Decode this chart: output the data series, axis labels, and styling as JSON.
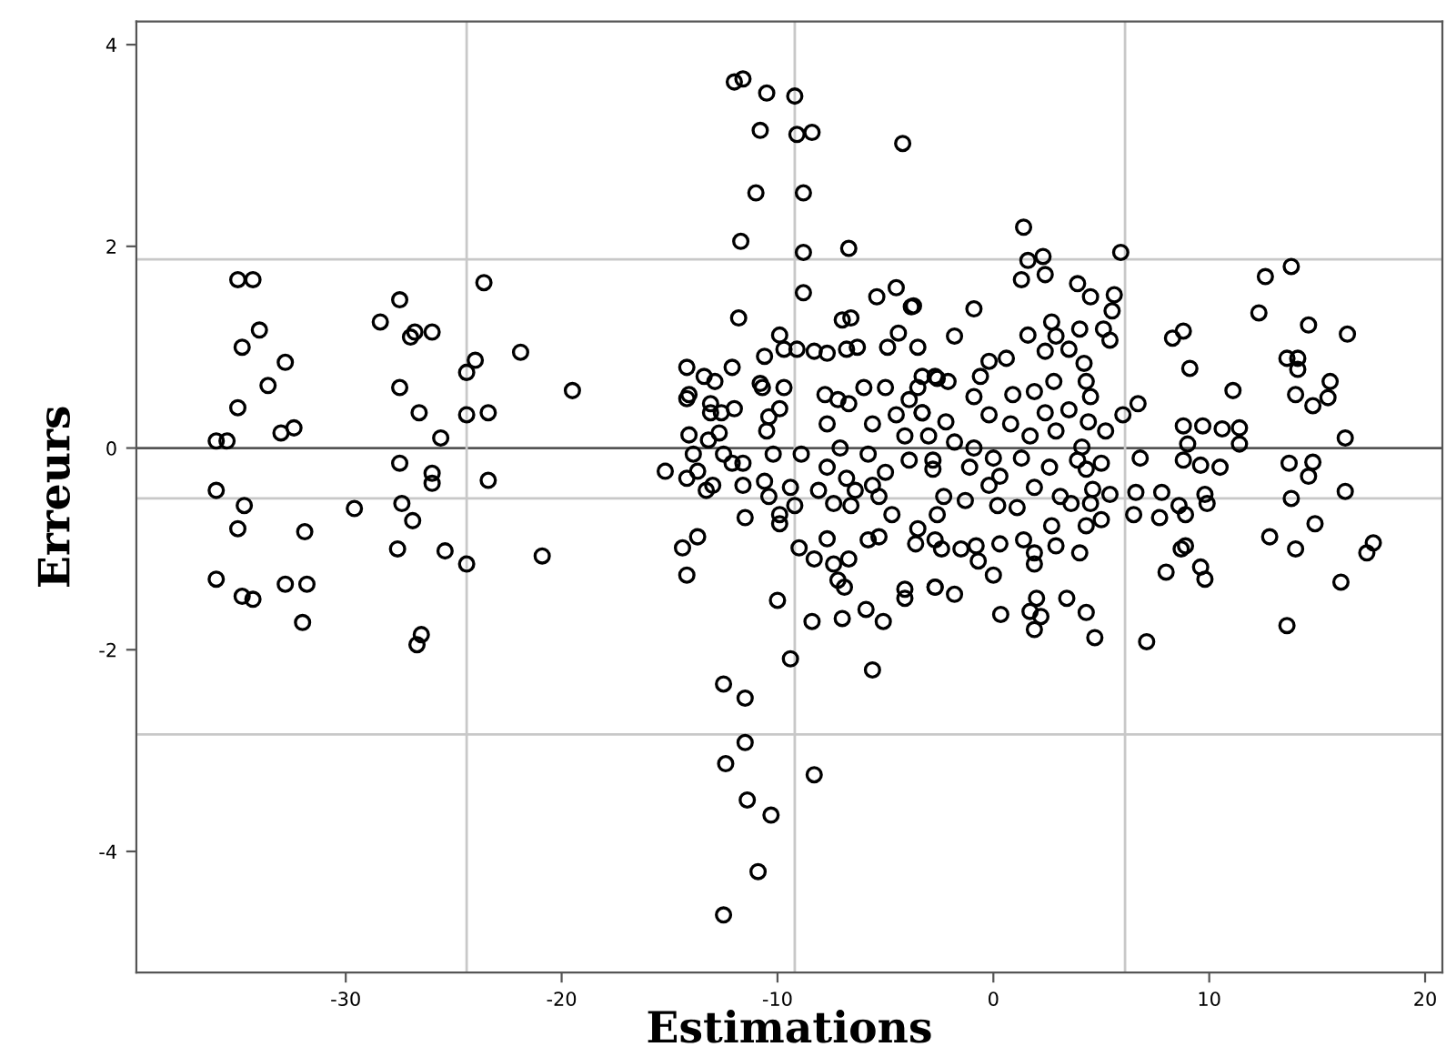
{
  "chart_data": {
    "type": "scatter",
    "xlabel": "Estimations",
    "ylabel": "Erreurs",
    "xlim": [
      -39.7,
      20.8
    ],
    "ylim": [
      -5.2,
      4.23
    ],
    "xticks": [
      -30,
      -20,
      -10,
      0,
      10,
      20
    ],
    "yticks": [
      -4,
      -2,
      0,
      2,
      4
    ],
    "grid": false,
    "marker": "circle",
    "color": "#000000",
    "ref_lines": [
      {
        "axis": "y",
        "value": 0,
        "color": "#555555"
      },
      {
        "axis": "y",
        "value": 1.87,
        "color": "#c8c8c8"
      },
      {
        "axis": "y",
        "value": -0.5,
        "color": "#c8c8c8"
      },
      {
        "axis": "y",
        "value": -2.84,
        "color": "#c8c8c8"
      },
      {
        "axis": "x",
        "value": -24.4,
        "color": "#c8c8c8"
      },
      {
        "axis": "x",
        "value": -9.2,
        "color": "#c8c8c8"
      },
      {
        "axis": "x",
        "value": 6.1,
        "color": "#c8c8c8"
      }
    ],
    "x": [
      -36,
      -35.5,
      -36,
      -35,
      -35,
      -34.3,
      -34.8,
      -34,
      -33.6,
      -32.8,
      -33,
      -32.4,
      -34.7,
      -35,
      -36,
      -34.8,
      -34.3,
      -32.8,
      -31.8,
      -31.9,
      -32,
      -29.6,
      -28.4,
      -27.5,
      -27,
      -26.8,
      -26,
      -27.5,
      -26.6,
      -25.6,
      -26,
      -26,
      -27.5,
      -27.4,
      -26.9,
      -27.6,
      -25.4,
      -24.4,
      -26.5,
      -26.7,
      -24.4,
      -24.4,
      -24.0,
      -23.6,
      -23.4,
      -23.4,
      -21.9,
      -19.5,
      -20.9,
      -12.0,
      -11.6,
      -10.5,
      -9.2,
      -10.8,
      -9.1,
      -8.4,
      -4.2,
      -11.0,
      -8.8,
      -11.7,
      -8.8,
      -6.7,
      -8.8,
      -5.4,
      -4.5,
      -3.7,
      -11.8,
      -7,
      -6.6,
      -9.9,
      -9.7,
      -9.1,
      -8.3,
      -7.7,
      -6.8,
      -6.3,
      -4.9,
      -4.4,
      -10.6,
      -14.2,
      -13.4,
      -12.9,
      -12.1,
      -14.2,
      -14.1,
      -13.1,
      -13.1,
      -12.6,
      -12,
      -10.8,
      -10.7,
      -9.7,
      -10.4,
      -9.9,
      -10.5,
      -14.1,
      -13.2,
      -12.7,
      -13.9,
      -15.2,
      -14.2,
      -13.7,
      -13.3,
      -13.0,
      -12.5,
      -12.1,
      -11.6,
      -11.6,
      -10.6,
      -10.2,
      -9.4,
      -8.9,
      -10.4,
      -11.5,
      -9.9,
      -9.9,
      -9.2,
      -14.4,
      -13.7,
      -14.2,
      -9.0,
      -8.3,
      -7.7,
      -7.4,
      -7.2,
      -6.9,
      -6.7,
      -5.8,
      -5.3,
      -4.1,
      -4.1,
      -2.7,
      -10.0,
      -8.4,
      -7.0,
      -5.9,
      -5.1,
      -9.4,
      -5.6,
      -12.5,
      -11.5,
      -11.5,
      -12.4,
      -8.3,
      -11.4,
      -10.3,
      -10.9,
      -12.5,
      -7.8,
      -7.2,
      -6.7,
      -7.7,
      -7.1,
      -7.7,
      -6.8,
      -8.1,
      -6,
      -5.0,
      -5.6,
      -5.8,
      -5.0,
      -5.3,
      -4.7,
      -4.5,
      -4.1,
      -3.9,
      -3.3,
      -3.0,
      -2.8,
      -3.3,
      -2.6,
      -3.9,
      -6.4,
      -7.4,
      -6.6,
      -5.6,
      1.4,
      1.6,
      2.3,
      1.3,
      2.4,
      3.9,
      4.5,
      5.6,
      5.5,
      -0.9,
      -3.8,
      -1.8,
      -3.5,
      2.7,
      4,
      5.1,
      5.4,
      1.6,
      2.9,
      3.5,
      2.4,
      0.6,
      -0.2,
      4.2,
      -2.7,
      -0.6,
      2.8,
      4.3,
      -3.5,
      -2.1,
      -0.9,
      0.9,
      1.9,
      4.5,
      3.5,
      2.4,
      -0.2,
      -2.2,
      -3.3,
      0.8,
      2.9,
      4.4,
      5.2,
      1.7,
      4.1,
      -1.8,
      -0.9,
      0,
      1.3,
      3.9,
      5,
      -2.8,
      -1.1,
      0.3,
      2.6,
      4.3,
      -0.2,
      1.9,
      4.6,
      5.4,
      -2.3,
      -1.3,
      0.2,
      1.1,
      3.1,
      3.6,
      4.5,
      5,
      -2.6,
      -3.5,
      2.7,
      4.3,
      -2.7,
      -0.8,
      0.3,
      1.4,
      2.9,
      4,
      -3.6,
      -2.4,
      -1.5,
      1.9,
      -0.7,
      1.9,
      0,
      -2.7,
      -1.8,
      2,
      3.4,
      1.7,
      2.2,
      0.34,
      1.9,
      4.7,
      7.1,
      4.3,
      13.6,
      16.1,
      17.6,
      17.3,
      14.9,
      14,
      12.8,
      9.8,
      9.6,
      8,
      8.7,
      8.9,
      7.8,
      6.6,
      6.5,
      7.7,
      8.6,
      8.9,
      9.8,
      9.9,
      6.8,
      8.8,
      9.6,
      10.5,
      9,
      8.8,
      9.7,
      10.6,
      11.4,
      11.4,
      11.1,
      9.1,
      8.3,
      8.8,
      6.7,
      6,
      5.9,
      12.3,
      12.6,
      13.8,
      14.6,
      16.4,
      13.6,
      14.1,
      14.1,
      14,
      14.8,
      15.5,
      15.6,
      16.3,
      13.7,
      14.8,
      14.6,
      13.8,
      16.3
    ],
    "values": [
      0.07,
      0.07,
      -0.42,
      0.4,
      1.67,
      1.67,
      1.0,
      1.17,
      0.62,
      0.85,
      0.15,
      0.2,
      -0.57,
      -0.8,
      -1.3,
      -1.47,
      -1.5,
      -1.35,
      -1.35,
      -0.83,
      -1.73,
      -0.6,
      1.25,
      1.47,
      1.1,
      1.15,
      1.15,
      0.6,
      0.35,
      0.1,
      -0.25,
      -0.35,
      -0.15,
      -0.55,
      -0.72,
      -1.0,
      -1.02,
      -1.15,
      -1.85,
      -1.95,
      0.33,
      0.75,
      0.87,
      1.64,
      0.35,
      -0.32,
      0.95,
      0.57,
      -1.07,
      3.63,
      3.66,
      3.52,
      3.49,
      3.15,
      3.11,
      3.13,
      3.02,
      2.53,
      2.53,
      2.05,
      1.94,
      1.98,
      1.54,
      1.5,
      1.59,
      1.41,
      1.29,
      1.27,
      1.29,
      1.12,
      0.98,
      0.98,
      0.96,
      0.94,
      0.98,
      1.0,
      1.0,
      1.14,
      0.91,
      0.8,
      0.71,
      0.66,
      0.8,
      0.49,
      0.53,
      0.44,
      0.35,
      0.35,
      0.39,
      0.64,
      0.6,
      0.6,
      0.31,
      0.39,
      0.17,
      0.13,
      0.08,
      0.15,
      -0.06,
      -0.23,
      -0.3,
      -0.23,
      -0.42,
      -0.37,
      -0.06,
      -0.15,
      -0.15,
      -0.37,
      -0.33,
      -0.06,
      -0.39,
      -0.06,
      -0.48,
      -0.69,
      -0.66,
      -0.75,
      -0.57,
      -0.99,
      -0.88,
      -1.26,
      -0.99,
      -1.1,
      -0.9,
      -1.15,
      -1.31,
      -1.38,
      -1.1,
      -0.91,
      -0.88,
      -1.4,
      -1.49,
      -1.38,
      -1.51,
      -1.72,
      -1.69,
      -1.6,
      -1.72,
      -2.09,
      -2.2,
      -2.34,
      -2.48,
      -2.92,
      -3.13,
      -3.24,
      -3.49,
      -3.64,
      -4.2,
      -4.63,
      0.53,
      0.48,
      0.44,
      0.24,
      0,
      -0.19,
      -0.3,
      -0.42,
      0.6,
      0.6,
      0.24,
      -0.06,
      -0.24,
      -0.48,
      -0.66,
      0.33,
      0.12,
      -0.12,
      0.35,
      0.12,
      -0.12,
      0.71,
      0.69,
      0.48,
      -0.42,
      -0.55,
      -0.57,
      -0.37,
      2.19,
      1.86,
      1.9,
      1.67,
      1.72,
      1.63,
      1.5,
      1.52,
      1.36,
      1.38,
      1.4,
      1.11,
      1.0,
      1.25,
      1.18,
      1.18,
      1.07,
      1.12,
      1.11,
      0.98,
      0.96,
      0.89,
      0.86,
      0.84,
      0.71,
      0.71,
      0.66,
      0.66,
      0.6,
      0.66,
      0.51,
      0.53,
      0.56,
      0.51,
      0.38,
      0.35,
      0.33,
      0.26,
      0.35,
      0.24,
      0.17,
      0.26,
      0.17,
      0.12,
      0.01,
      0.06,
      0,
      -0.1,
      -0.1,
      -0.12,
      -0.15,
      -0.21,
      -0.19,
      -0.28,
      -0.19,
      -0.21,
      -0.37,
      -0.39,
      -0.41,
      -0.46,
      -0.48,
      -0.52,
      -0.57,
      -0.59,
      -0.48,
      -0.55,
      -0.55,
      -0.71,
      -0.66,
      -0.8,
      -0.77,
      -0.77,
      -0.91,
      -0.97,
      -0.95,
      -0.91,
      -0.97,
      -1.04,
      -0.95,
      -1.0,
      -1.0,
      -1.04,
      -1.12,
      -1.15,
      -1.26,
      -1.38,
      -1.45,
      -1.49,
      -1.49,
      -1.62,
      -1.67,
      -1.65,
      -1.8,
      -1.88,
      -1.92,
      -1.63,
      -1.76,
      -1.33,
      -0.94,
      -1.04,
      -0.75,
      -1.0,
      -0.88,
      -1.3,
      -1.18,
      -1.23,
      -1.0,
      -0.97,
      -0.44,
      -0.44,
      -0.66,
      -0.69,
      -0.57,
      -0.66,
      -0.46,
      -0.55,
      -0.1,
      -0.12,
      -0.17,
      -0.19,
      0.04,
      0.22,
      0.22,
      0.19,
      0.2,
      0.04,
      0.57,
      0.79,
      1.09,
      1.16,
      0.44,
      0.33,
      1.94,
      1.34,
      1.7,
      1.8,
      1.22,
      1.13,
      0.89,
      0.89,
      0.78,
      0.53,
      0.42,
      0.5,
      0.66,
      0.1,
      -0.15,
      -0.14,
      -0.28,
      -0.5,
      -0.43
    ]
  }
}
